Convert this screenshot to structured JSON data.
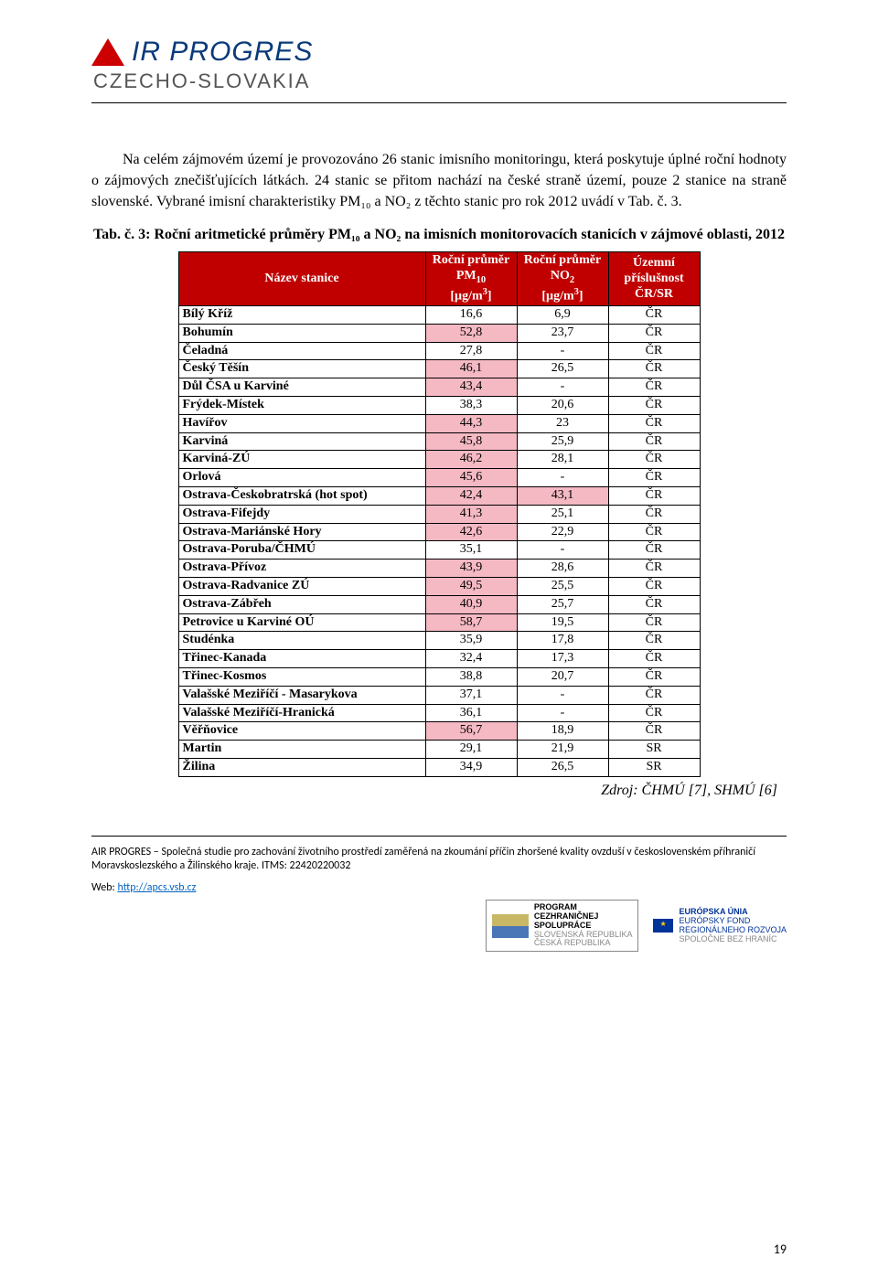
{
  "logo": {
    "line1": "IR PROGRES",
    "line2": "CZECHO-SLOVAKIA"
  },
  "para1": "Na celém zájmovém území je provozováno 26 stanic imisního monitoringu, která poskytuje úplné roční hodnoty o zájmových znečišťujících látkách. 24 stanic se přitom nachází na české straně území, pouze 2 stanice na straně slovenské. Vybrané imisní charakteristiky PM₁₀ a NO₂ z těchto stanic pro rok 2012 uvádí v Tab. č. 3.",
  "table_caption": "Tab. č. 3: Roční aritmetické průměry PM₁₀ a NO₂ na imisních monitorovacích stanicích v zájmové oblasti, 2012",
  "table": {
    "header": {
      "col1": "Název stanice",
      "col2": {
        "l1": "Roční průměr",
        "l2": "PM",
        "l2sub": "10",
        "l3a": "[µg/m",
        "l3sup": "3",
        "l3b": "]"
      },
      "col3": {
        "l1": "Roční průměr",
        "l2": "NO",
        "l2sub": "2",
        "l3a": "[µg/m",
        "l3sup": "3",
        "l3b": "]"
      },
      "col4": {
        "l1": "Územní",
        "l2": "příslušnost",
        "l3": "ČR/SR"
      }
    },
    "rows": [
      {
        "name": "Bílý Kříž",
        "pm": "16,6",
        "pm_pink": false,
        "no": "6,9",
        "no_pink": false,
        "reg": "ČR"
      },
      {
        "name": "Bohumín",
        "pm": "52,8",
        "pm_pink": true,
        "no": "23,7",
        "no_pink": false,
        "reg": "ČR"
      },
      {
        "name": "Čeladná",
        "pm": "27,8",
        "pm_pink": false,
        "no": "-",
        "no_pink": false,
        "reg": "ČR"
      },
      {
        "name": "Český Těšín",
        "pm": "46,1",
        "pm_pink": true,
        "no": "26,5",
        "no_pink": false,
        "reg": "ČR"
      },
      {
        "name": "Důl ČSA u Karviné",
        "pm": "43,4",
        "pm_pink": true,
        "no": "-",
        "no_pink": false,
        "reg": "ČR"
      },
      {
        "name": "Frýdek-Místek",
        "pm": "38,3",
        "pm_pink": false,
        "no": "20,6",
        "no_pink": false,
        "reg": "ČR"
      },
      {
        "name": "Havířov",
        "pm": "44,3",
        "pm_pink": true,
        "no": "23",
        "no_pink": false,
        "reg": "ČR"
      },
      {
        "name": "Karviná",
        "pm": "45,8",
        "pm_pink": true,
        "no": "25,9",
        "no_pink": false,
        "reg": "ČR"
      },
      {
        "name": "Karviná-ZÚ",
        "pm": "46,2",
        "pm_pink": true,
        "no": "28,1",
        "no_pink": false,
        "reg": "ČR"
      },
      {
        "name": "Orlová",
        "pm": "45,6",
        "pm_pink": true,
        "no": "-",
        "no_pink": false,
        "reg": "ČR"
      },
      {
        "name": "Ostrava-Českobratrská (hot spot)",
        "pm": "42,4",
        "pm_pink": true,
        "no": "43,1",
        "no_pink": true,
        "reg": "ČR"
      },
      {
        "name": "Ostrava-Fifejdy",
        "pm": "41,3",
        "pm_pink": true,
        "no": "25,1",
        "no_pink": false,
        "reg": "ČR"
      },
      {
        "name": "Ostrava-Mariánské Hory",
        "pm": "42,6",
        "pm_pink": true,
        "no": "22,9",
        "no_pink": false,
        "reg": "ČR"
      },
      {
        "name": "Ostrava-Poruba/ČHMÚ",
        "pm": "35,1",
        "pm_pink": false,
        "no": "-",
        "no_pink": false,
        "reg": "ČR"
      },
      {
        "name": "Ostrava-Přívoz",
        "pm": "43,9",
        "pm_pink": true,
        "no": "28,6",
        "no_pink": false,
        "reg": "ČR"
      },
      {
        "name": "Ostrava-Radvanice ZÚ",
        "pm": "49,5",
        "pm_pink": true,
        "no": "25,5",
        "no_pink": false,
        "reg": "ČR"
      },
      {
        "name": "Ostrava-Zábřeh",
        "pm": "40,9",
        "pm_pink": true,
        "no": "25,7",
        "no_pink": false,
        "reg": "ČR"
      },
      {
        "name": "Petrovice u Karviné OÚ",
        "pm": "58,7",
        "pm_pink": true,
        "no": "19,5",
        "no_pink": false,
        "reg": "ČR"
      },
      {
        "name": "Studénka",
        "pm": "35,9",
        "pm_pink": false,
        "no": "17,8",
        "no_pink": false,
        "reg": "ČR"
      },
      {
        "name": "Třinec-Kanada",
        "pm": "32,4",
        "pm_pink": false,
        "no": "17,3",
        "no_pink": false,
        "reg": "ČR"
      },
      {
        "name": "Třinec-Kosmos",
        "pm": "38,8",
        "pm_pink": false,
        "no": "20,7",
        "no_pink": false,
        "reg": "ČR"
      },
      {
        "name": "Valašské Meziříčí - Masarykova",
        "pm": "37,1",
        "pm_pink": false,
        "no": "-",
        "no_pink": false,
        "reg": "ČR"
      },
      {
        "name": "Valašské Meziříčí-Hranická",
        "pm": "36,1",
        "pm_pink": false,
        "no": "-",
        "no_pink": false,
        "reg": "ČR"
      },
      {
        "name": "Věřňovice",
        "pm": "56,7",
        "pm_pink": true,
        "no": "18,9",
        "no_pink": false,
        "reg": "ČR"
      },
      {
        "name": "Martin",
        "pm": "29,1",
        "pm_pink": false,
        "no": "21,9",
        "no_pink": false,
        "reg": "SR"
      },
      {
        "name": "Žilina",
        "pm": "34,9",
        "pm_pink": false,
        "no": "26,5",
        "no_pink": false,
        "reg": "SR"
      }
    ],
    "colors": {
      "header_bg": "#c00000",
      "header_fg": "#ffffff",
      "highlight_bg": "#f5b9c4"
    }
  },
  "source": "Zdroj: ČHMÚ [7], SHMÚ [6]",
  "footer": {
    "text": "AIR PROGRES – Společná studie pro zachování životního prostředí zaměřená na zkoumání příčin zhoršené kvality ovzduší v československém příhraničí Moravskoslezského a Žilinského kraje. ITMS: 22420220032",
    "web_label": "Web: ",
    "web_url": "http://apcs.vsb.cz",
    "badge1": {
      "l1": "PROGRAM",
      "l2": "CEZHRANIČNEJ",
      "l3": "SPOLUPRÁCE",
      "l4": "SLOVENSKÁ REPUBLIKA",
      "l5": "ČESKÁ REPUBLIKA"
    },
    "badge2": {
      "l1": "EURÓPSKA ÚNIA",
      "l2": "EURÓPSKY FOND",
      "l3": "REGIONÁLNEHO ROZVOJA",
      "l4": "SPOLOČNE BEZ HRANÍC"
    }
  },
  "page_number": "19"
}
